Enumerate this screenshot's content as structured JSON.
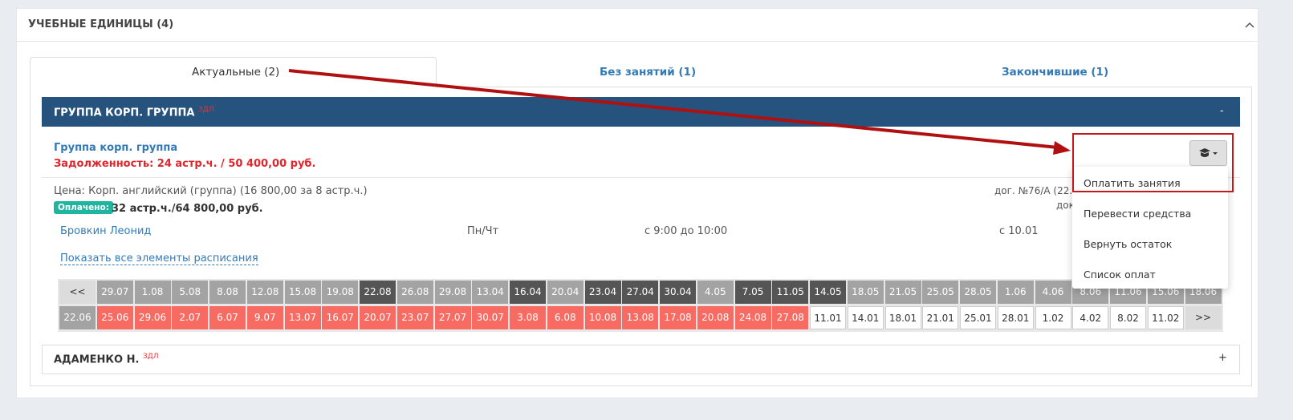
{
  "panel": {
    "title": "УЧЕБНЫЕ ЕДИНИЦЫ (4)"
  },
  "tabs": [
    "Актуальные (2)",
    "Без занятий (1)",
    "Закончившие (1)"
  ],
  "group": {
    "title": "ГРУППА КОРП. ГРУППА",
    "badge": "ЗДЛ",
    "toggle": "-",
    "name": "Группа корп. группа",
    "debt": "Задолженность: 24 астр.ч. / 50 400,00 руб.",
    "price": "Цена: Корп. английский (группа) (16 800,00 за 8 астр.ч.)",
    "paid_label": "Оплачено:",
    "paid": "32 астр.ч./64 800,00 руб.",
    "contract": "дог. №76/А (22.0",
    "contract2": "док",
    "student": "Бровкин Леонид",
    "days": "Пн/Чт",
    "time": "с 9:00 до 10:00",
    "from": "с 10.01",
    "show_all": "Показать все элементы расписания",
    "schedule": [
      [
        {
          "t": "<<",
          "c": "#dcdcdc"
        },
        {
          "t": "29.07",
          "c": "#a3a3a3"
        },
        {
          "t": "1.08",
          "c": "#a3a3a3"
        },
        {
          "t": "5.08",
          "c": "#a3a3a3"
        },
        {
          "t": "8.08",
          "c": "#a3a3a3"
        },
        {
          "t": "12.08",
          "c": "#a3a3a3"
        },
        {
          "t": "15.08",
          "c": "#a3a3a3"
        },
        {
          "t": "19.08",
          "c": "#a3a3a3"
        },
        {
          "t": "22.08",
          "c": "#555555"
        },
        {
          "t": "26.08",
          "c": "#a3a3a3"
        },
        {
          "t": "29.08",
          "c": "#a3a3a3"
        },
        {
          "t": "13.04",
          "c": "#a3a3a3"
        },
        {
          "t": "16.04",
          "c": "#555555"
        },
        {
          "t": "20.04",
          "c": "#a3a3a3"
        },
        {
          "t": "23.04",
          "c": "#555555"
        },
        {
          "t": "27.04",
          "c": "#555555"
        },
        {
          "t": "30.04",
          "c": "#555555"
        },
        {
          "t": "4.05",
          "c": "#a3a3a3"
        },
        {
          "t": "7.05",
          "c": "#555555"
        },
        {
          "t": "11.05",
          "c": "#555555"
        },
        {
          "t": "14.05",
          "c": "#555555"
        },
        {
          "t": "18.05",
          "c": "#a3a3a3"
        },
        {
          "t": "21.05",
          "c": "#a3a3a3"
        },
        {
          "t": "25.05",
          "c": "#a3a3a3"
        },
        {
          "t": "28.05",
          "c": "#a3a3a3"
        },
        {
          "t": "1.06",
          "c": "#a3a3a3"
        },
        {
          "t": "4.06",
          "c": "#a3a3a3"
        },
        {
          "t": "8.06",
          "c": "#a3a3a3"
        },
        {
          "t": "11.06",
          "c": "#a3a3a3"
        },
        {
          "t": "15.06",
          "c": "#a3a3a3"
        },
        {
          "t": "18.06",
          "c": "#a3a3a3"
        }
      ],
      [
        {
          "t": "22.06",
          "c": "#a3a3a3"
        },
        {
          "t": "25.06",
          "c": "#f76b62"
        },
        {
          "t": "29.06",
          "c": "#f76b62"
        },
        {
          "t": "2.07",
          "c": "#f76b62"
        },
        {
          "t": "6.07",
          "c": "#f76b62"
        },
        {
          "t": "9.07",
          "c": "#f76b62"
        },
        {
          "t": "13.07",
          "c": "#f76b62"
        },
        {
          "t": "16.07",
          "c": "#f76b62"
        },
        {
          "t": "20.07",
          "c": "#f76b62"
        },
        {
          "t": "23.07",
          "c": "#f76b62"
        },
        {
          "t": "27.07",
          "c": "#f76b62"
        },
        {
          "t": "30.07",
          "c": "#f76b62"
        },
        {
          "t": "3.08",
          "c": "#f76b62"
        },
        {
          "t": "6.08",
          "c": "#f76b62"
        },
        {
          "t": "10.08",
          "c": "#f76b62"
        },
        {
          "t": "13.08",
          "c": "#f76b62"
        },
        {
          "t": "17.08",
          "c": "#f76b62"
        },
        {
          "t": "20.08",
          "c": "#f76b62"
        },
        {
          "t": "24.08",
          "c": "#f76b62"
        },
        {
          "t": "27.08",
          "c": "#f76b62"
        },
        {
          "t": "11.01",
          "c": "#ffffff"
        },
        {
          "t": "14.01",
          "c": "#ffffff"
        },
        {
          "t": "18.01",
          "c": "#ffffff"
        },
        {
          "t": "21.01",
          "c": "#ffffff"
        },
        {
          "t": "25.01",
          "c": "#ffffff"
        },
        {
          "t": "28.01",
          "c": "#ffffff"
        },
        {
          "t": "1.02",
          "c": "#ffffff"
        },
        {
          "t": "4.02",
          "c": "#ffffff"
        },
        {
          "t": "8.02",
          "c": "#ffffff"
        },
        {
          "t": "11.02",
          "c": "#ffffff"
        },
        {
          "t": ">>",
          "c": "#dcdcdc"
        }
      ]
    ],
    "menu": [
      "Оплатить занятия",
      "Перевести средства",
      "Вернуть остаток",
      "Список оплат"
    ]
  },
  "group2": {
    "title": "АДАМЕНКО Н.",
    "badge": "ЗДЛ",
    "toggle": "+"
  }
}
